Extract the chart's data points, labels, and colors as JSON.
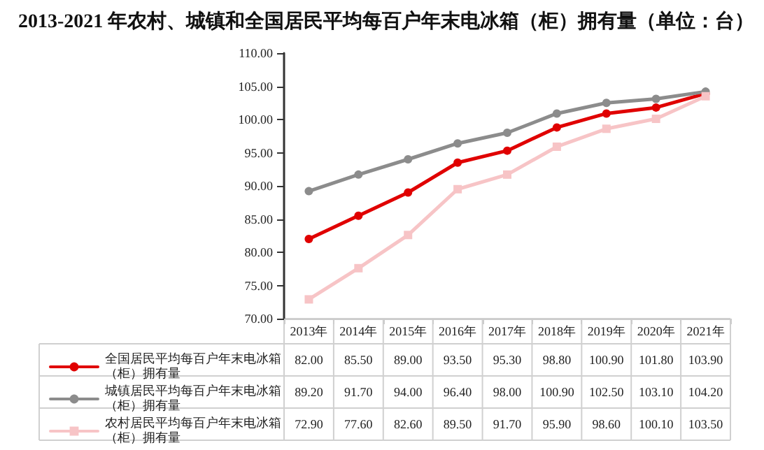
{
  "chart_data": {
    "type": "line",
    "title": "2013-2021 年农村、城镇和全国居民平均每百户年末电冰箱（柜）拥有量（单位：台）",
    "categories": [
      "2013年",
      "2014年",
      "2015年",
      "2016年",
      "2017年",
      "2018年",
      "2019年",
      "2020年",
      "2021年"
    ],
    "series": [
      {
        "name": "全国居民平均每百户年末电冰箱（柜）拥有量",
        "color": "#e00000",
        "marker": "circle",
        "values": [
          82.0,
          85.5,
          89.0,
          93.5,
          95.3,
          98.8,
          100.9,
          101.8,
          103.9
        ],
        "value_labels": [
          "82.00",
          "85.50",
          "89.00",
          "93.50",
          "95.30",
          "98.80",
          "100.90",
          "101.80",
          "103.90"
        ]
      },
      {
        "name": "城镇居民平均每百户年末电冰箱（柜）拥有量",
        "color": "#8c8c8c",
        "marker": "circle",
        "values": [
          89.2,
          91.7,
          94.0,
          96.4,
          98.0,
          100.9,
          102.5,
          103.1,
          104.2
        ],
        "value_labels": [
          "89.20",
          "91.70",
          "94.00",
          "96.40",
          "98.00",
          "100.90",
          "102.50",
          "103.10",
          "104.20"
        ]
      },
      {
        "name": "农村居民平均每百户年末电冰箱（柜）拥有量",
        "color": "#f7c4c6",
        "marker": "square",
        "values": [
          72.9,
          77.6,
          82.6,
          89.5,
          91.7,
          95.9,
          98.6,
          100.1,
          103.5
        ],
        "value_labels": [
          "72.90",
          "77.60",
          "82.60",
          "89.50",
          "91.70",
          "95.90",
          "98.60",
          "100.10",
          "103.50"
        ]
      }
    ],
    "ylim": [
      70,
      110
    ],
    "yticks": [
      {
        "value": 70,
        "label": "70.00"
      },
      {
        "value": 75,
        "label": "75.00"
      },
      {
        "value": 80,
        "label": "80.00"
      },
      {
        "value": 85,
        "label": "85.00"
      },
      {
        "value": 90,
        "label": "90.00"
      },
      {
        "value": 95,
        "label": "95.00"
      },
      {
        "value": 100,
        "label": "100.00"
      },
      {
        "value": 105,
        "label": "105.00"
      },
      {
        "value": 110,
        "label": "110.00"
      }
    ],
    "grid": false,
    "legend": "bottom left",
    "line_style": "solid"
  }
}
